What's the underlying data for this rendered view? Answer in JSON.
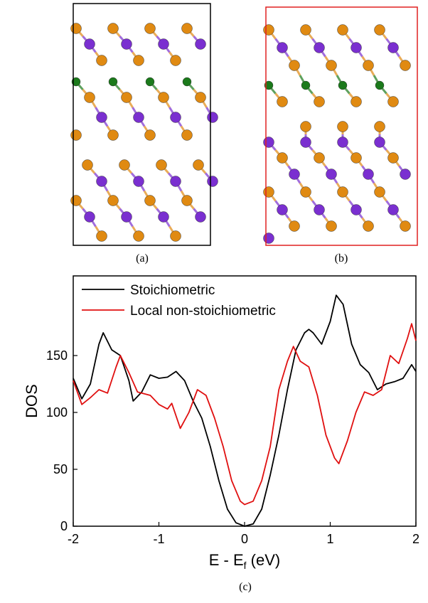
{
  "captions": [
    "(a)",
    "(b)",
    "(c)"
  ],
  "chart_data": {
    "type": "line",
    "xlabel": [
      "E - E",
      "f",
      " (eV)"
    ],
    "ylabel": "DOS",
    "xlim": [
      -2,
      2
    ],
    "xticks": [
      -2,
      -1,
      0,
      1,
      2
    ],
    "ylim": [
      0,
      220
    ],
    "yticks": [
      0,
      50,
      100,
      150
    ],
    "legend": "upper left",
    "series": [
      {
        "name": "Stoichiometric",
        "color": "#000000",
        "x": [
          -2,
          -1.9,
          -1.8,
          -1.7,
          -1.65,
          -1.55,
          -1.45,
          -1.35,
          -1.3,
          -1.2,
          -1.1,
          -1.0,
          -0.9,
          -0.8,
          -0.7,
          -0.6,
          -0.5,
          -0.4,
          -0.3,
          -0.2,
          -0.1,
          0,
          0.1,
          0.2,
          0.3,
          0.4,
          0.5,
          0.6,
          0.7,
          0.75,
          0.8,
          0.9,
          1.0,
          1.07,
          1.15,
          1.25,
          1.35,
          1.45,
          1.55,
          1.65,
          1.75,
          1.85,
          1.95,
          2.0
        ],
        "values": [
          130,
          112,
          125,
          160,
          170,
          155,
          150,
          128,
          110,
          118,
          133,
          130,
          131,
          136,
          128,
          110,
          95,
          70,
          40,
          15,
          3,
          0,
          2,
          15,
          45,
          80,
          120,
          155,
          170,
          173,
          170,
          160,
          180,
          203,
          195,
          160,
          142,
          135,
          120,
          125,
          127,
          130,
          142,
          136
        ]
      },
      {
        "name": "Local non-stoichiometric",
        "color": "#e01010",
        "x": [
          -2,
          -1.9,
          -1.8,
          -1.7,
          -1.6,
          -1.5,
          -1.45,
          -1.35,
          -1.25,
          -1.1,
          -1.0,
          -0.9,
          -0.85,
          -0.75,
          -0.65,
          -0.55,
          -0.45,
          -0.35,
          -0.25,
          -0.15,
          -0.05,
          0,
          0.1,
          0.2,
          0.3,
          0.4,
          0.5,
          0.57,
          0.65,
          0.75,
          0.85,
          0.95,
          1.05,
          1.1,
          1.2,
          1.3,
          1.4,
          1.5,
          1.6,
          1.7,
          1.8,
          1.9,
          1.95,
          2.0
        ],
        "values": [
          128,
          107,
          113,
          120,
          117,
          140,
          150,
          135,
          118,
          115,
          107,
          103,
          108,
          86,
          100,
          120,
          115,
          95,
          70,
          40,
          22,
          19,
          22,
          40,
          70,
          120,
          145,
          158,
          145,
          140,
          115,
          80,
          60,
          55,
          75,
          100,
          118,
          115,
          120,
          150,
          143,
          165,
          178,
          163
        ]
      }
    ]
  }
}
